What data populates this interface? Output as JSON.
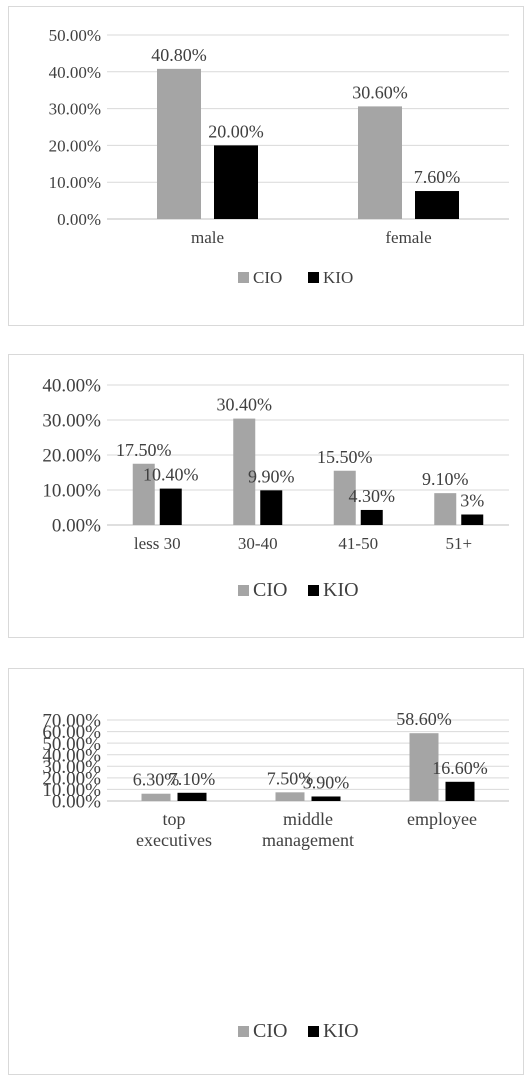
{
  "chart_data": [
    {
      "type": "bar",
      "categories": [
        "male",
        "female"
      ],
      "series": [
        {
          "name": "CIO",
          "values": [
            40.8,
            30.6
          ],
          "labels": [
            "40.80%",
            "30.60%"
          ]
        },
        {
          "name": "KIO",
          "values": [
            20.0,
            7.6
          ],
          "labels": [
            "20.00%",
            "7.60%"
          ]
        }
      ],
      "ylim": [
        0,
        50
      ],
      "ytick_labels": [
        "0.00%",
        "10.00%",
        "20.00%",
        "30.00%",
        "40.00%",
        "50.00%"
      ],
      "grid": true,
      "legend": "bottom"
    },
    {
      "type": "bar",
      "categories": [
        "less 30",
        "30-40",
        "41-50",
        "51+"
      ],
      "series": [
        {
          "name": "CIO",
          "values": [
            17.5,
            30.4,
            15.5,
            9.1
          ],
          "labels": [
            "17.50%",
            "30.40%",
            "15.50%",
            "9.10%"
          ]
        },
        {
          "name": "KIO",
          "values": [
            10.4,
            9.9,
            4.3,
            3
          ],
          "labels": [
            "10.40%",
            "9.90%",
            "4.30%",
            "3%"
          ]
        }
      ],
      "ylim": [
        0,
        40
      ],
      "ytick_labels": [
        "0.00%",
        "10.00%",
        "20.00%",
        "30.00%",
        "40.00%"
      ],
      "grid": true,
      "legend": "bottom"
    },
    {
      "type": "bar",
      "categories": [
        [
          "top",
          "executives"
        ],
        [
          "middle",
          "management"
        ],
        [
          "employee"
        ]
      ],
      "series": [
        {
          "name": "CIO",
          "values": [
            6.3,
            7.5,
            58.6
          ],
          "labels": [
            "6.30%",
            "7.50%",
            "58.60%"
          ]
        },
        {
          "name": "KIO",
          "values": [
            7.1,
            3.9,
            16.6
          ],
          "labels": [
            "7.10%",
            "3.90%",
            "16.60%"
          ]
        }
      ],
      "ylim": [
        0,
        70
      ],
      "ytick_labels": [
        "0.00%",
        "10.00%",
        "20.00%",
        "30.00%",
        "40.00%",
        "50.00%",
        "60.00%",
        "70.00%"
      ],
      "grid": true,
      "legend": "bottom"
    }
  ],
  "colors": {
    "CIO": "#a5a5a5",
    "KIO": "#000000",
    "grid": "#d9d9d9"
  }
}
